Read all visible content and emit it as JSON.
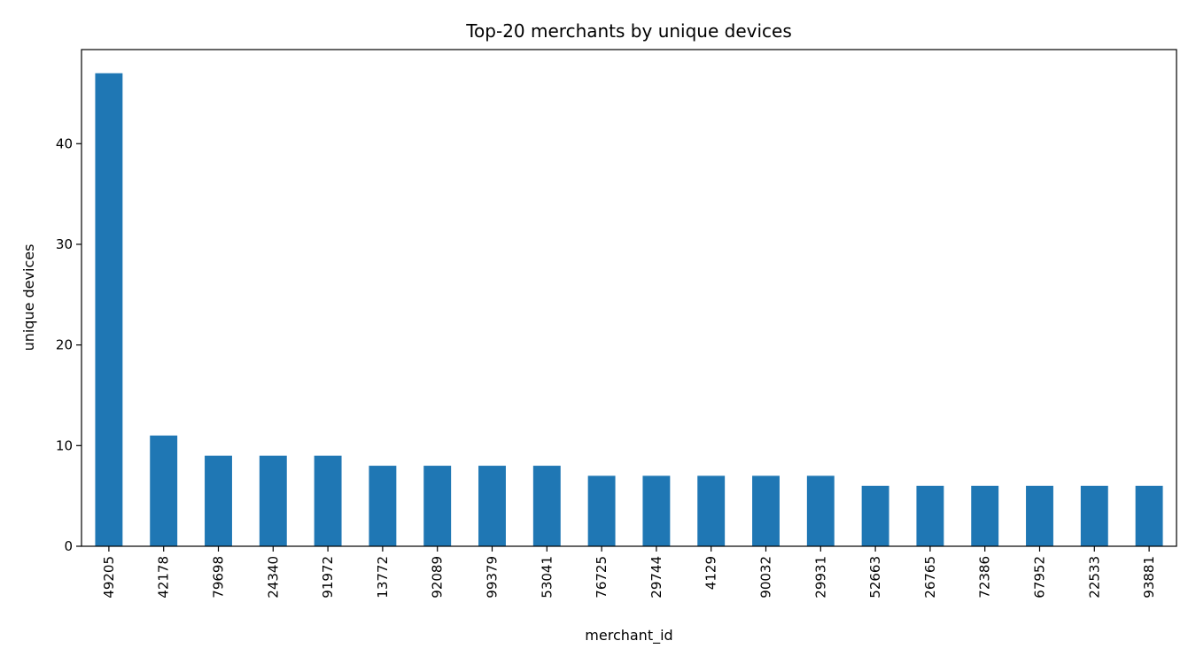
{
  "chart_data": {
    "type": "bar",
    "title": "Top-20 merchants by unique devices",
    "xlabel": "merchant_id",
    "ylabel": "unique devices",
    "categories": [
      "49205",
      "42178",
      "79698",
      "24340",
      "91972",
      "13772",
      "92089",
      "99379",
      "53041",
      "76725",
      "29744",
      "4129",
      "90032",
      "29931",
      "52663",
      "26765",
      "72386",
      "67952",
      "22533",
      "93881"
    ],
    "values": [
      47,
      11,
      9,
      9,
      9,
      8,
      8,
      8,
      8,
      7,
      7,
      7,
      7,
      7,
      6,
      6,
      6,
      6,
      6,
      6
    ],
    "ylim": [
      0,
      49.35
    ],
    "yticks": [
      0,
      10,
      20,
      30,
      40
    ],
    "bar_color": "#1f77b4",
    "grid": false,
    "legend": "none"
  }
}
